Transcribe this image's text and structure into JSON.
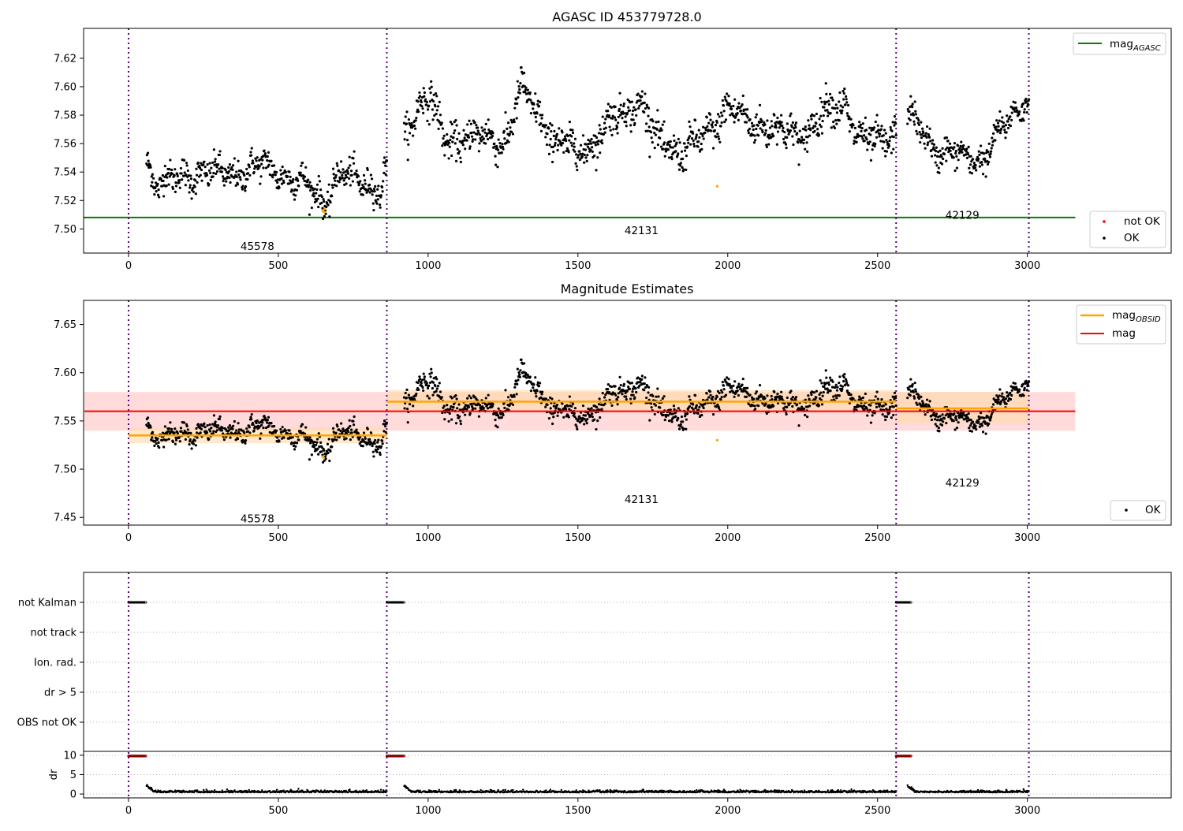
{
  "figure": {
    "colors": {
      "ok": "#000000",
      "not_ok": "#ff0000",
      "agasc": "#008000",
      "obsid_mag": "#ffa500",
      "mag": "#ff0000",
      "obs_separator": "#5a007a",
      "mag_band": "#ffb0b0",
      "obsid_band": "#ffd8a8"
    }
  },
  "chart_data": [
    {
      "type": "scatter",
      "title": "AGASC ID 453779728.0",
      "xlim": [
        -150,
        3480
      ],
      "ylim": [
        7.483,
        7.641
      ],
      "x_ticks": [
        0,
        500,
        1000,
        1500,
        2000,
        2500,
        3000
      ],
      "y_ticks": [
        "7.50",
        "7.52",
        "7.54",
        "7.56",
        "7.58",
        "7.60",
        "7.62"
      ],
      "obs_boundaries": [
        0,
        862,
        2562,
        3005
      ],
      "obsids": [
        {
          "label": "45578",
          "x_start": 0,
          "x_end": 862,
          "label_x": 430,
          "label_y": 7.488
        },
        {
          "label": "42131",
          "x_start": 862,
          "x_end": 2562,
          "label_x": 1712,
          "label_y": 7.499
        },
        {
          "label": "42129",
          "x_start": 2562,
          "x_end": 3005,
          "label_x": 2783,
          "label_y": 7.51
        }
      ],
      "series": [
        {
          "name": "mag_AGASC",
          "legend_main": "mag",
          "legend_sub": "AGASC",
          "kind": "hline",
          "y": 7.508,
          "x_range": [
            0,
            3160
          ]
        },
        {
          "name": "not OK",
          "kind": "scatter",
          "x": [
            648,
            651,
            655,
            1965
          ],
          "y": [
            7.513,
            7.512,
            7.514,
            7.53
          ],
          "color_key": "obsid_mag"
        },
        {
          "name": "OK",
          "kind": "scatter",
          "segments": [
            {
              "x_start": 60,
              "x_end": 862,
              "x_knots": [
                60,
                90,
                150,
                250,
                350,
                450,
                520,
                600,
                660,
                700,
                800,
                840,
                862
              ],
              "y_knots": [
                7.548,
                7.533,
                7.535,
                7.54,
                7.538,
                7.545,
                7.538,
                7.53,
                7.519,
                7.538,
                7.533,
                7.525,
                7.545
              ],
              "spread": 0.012
            },
            {
              "x_start": 920,
              "x_end": 2562,
              "x_knots": [
                920,
                970,
                1010,
                1050,
                1100,
                1200,
                1260,
                1310,
                1360,
                1420,
                1500,
                1560,
                1620,
                1680,
                1720,
                1760,
                1840,
                1880,
                1960,
                2000,
                2050,
                2150,
                2260,
                2330,
                2390,
                2430,
                2470,
                2540
              ],
              "y_knots": [
                7.565,
                7.588,
                7.591,
                7.565,
                7.562,
                7.566,
                7.56,
                7.598,
                7.585,
                7.56,
                7.557,
                7.56,
                7.58,
                7.587,
                7.585,
                7.565,
                7.553,
                7.558,
                7.574,
                7.585,
                7.578,
                7.57,
                7.566,
                7.584,
                7.589,
                7.565,
                7.56,
                7.566
              ],
              "spread": 0.014
            },
            {
              "x_start": 2600,
              "x_end": 3005,
              "x_knots": [
                2600,
                2650,
                2700,
                2750,
                2800,
                2860,
                2900,
                2960,
                3005
              ],
              "y_knots": [
                7.58,
                7.57,
                7.553,
                7.552,
                7.552,
                7.548,
                7.565,
                7.585,
                7.59
              ],
              "spread": 0.011
            }
          ]
        }
      ],
      "legend": [
        {
          "label": "mag",
          "sub": "AGASC",
          "position": "top-right"
        },
        {
          "label": "not OK",
          "position": "lower-right"
        },
        {
          "label": "OK",
          "position": "lower-right"
        }
      ]
    },
    {
      "type": "scatter",
      "title": "Magnitude Estimates",
      "xlim": [
        -150,
        3480
      ],
      "ylim": [
        7.442,
        7.675
      ],
      "x_ticks": [
        0,
        500,
        1000,
        1500,
        2000,
        2500,
        3000
      ],
      "y_ticks": [
        "7.45",
        "7.50",
        "7.55",
        "7.60",
        "7.65"
      ],
      "obs_boundaries": [
        0,
        862,
        2562,
        3005
      ],
      "obsids": [
        {
          "label": "45578",
          "label_x": 430,
          "label_y": 7.449
        },
        {
          "label": "42131",
          "label_x": 1712,
          "label_y": 7.469
        },
        {
          "label": "42129",
          "label_x": 2783,
          "label_y": 7.486
        }
      ],
      "mag": {
        "value": 7.56,
        "band": [
          7.54,
          7.58
        ],
        "x_range": [
          -150,
          3160
        ]
      },
      "obsid_mags": [
        {
          "x_start": 0,
          "x_end": 862,
          "value": 7.535,
          "band": [
            7.527,
            7.543
          ]
        },
        {
          "x_start": 862,
          "x_end": 2562,
          "value": 7.57,
          "band": [
            7.561,
            7.582
          ]
        },
        {
          "x_start": 2562,
          "x_end": 3005,
          "value": 7.563,
          "band": [
            7.548,
            7.58
          ]
        }
      ],
      "not_ok_points": {
        "x": [
          648,
          651,
          1965
        ],
        "y": [
          7.513,
          7.512,
          7.53
        ]
      },
      "legend": [
        {
          "label": "mag",
          "sub": "OBSID",
          "position": "top-right"
        },
        {
          "label": "mag",
          "position": "top-right"
        },
        {
          "label": "OK",
          "position": "lower-right"
        }
      ]
    },
    {
      "type": "scatter",
      "title": "",
      "xlim": [
        -150,
        3480
      ],
      "x_ticks": [
        0,
        500,
        1000,
        1500,
        2000,
        2500,
        3000
      ],
      "flag_rows": [
        "not Kalman",
        "not track",
        "Ion. rad.",
        "dr > 5",
        "OBS not OK"
      ],
      "flag_points": {
        "not Kalman": [
          [
            0,
            58
          ],
          [
            862,
            920
          ],
          [
            2562,
            2612
          ]
        ],
        "not track": [],
        "Ion. rad.": [],
        "dr > 5": [],
        "OBS not OK": []
      },
      "dr": {
        "ylabel": "dr",
        "ylim": [
          -1,
          11
        ],
        "y_ticks": [
          "0",
          "5",
          "10"
        ],
        "high_segments": [
          [
            0,
            58,
            9.8
          ],
          [
            862,
            920,
            9.8
          ],
          [
            2562,
            2612,
            9.8
          ]
        ],
        "baseline": 0.4,
        "segments": [
          [
            60,
            862
          ],
          [
            920,
            2562
          ],
          [
            2600,
            3005
          ]
        ]
      }
    }
  ]
}
